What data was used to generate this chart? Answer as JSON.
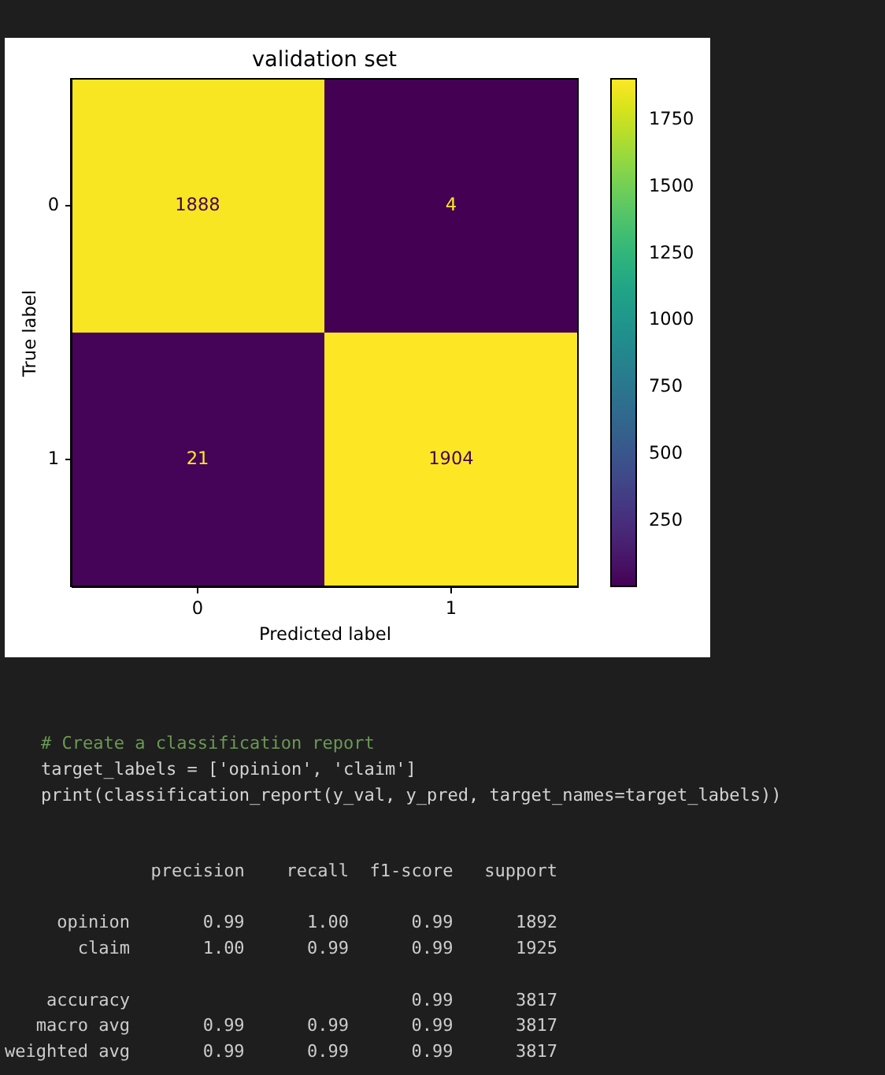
{
  "chart_data": [
    {
      "type": "heatmap",
      "title": "validation set",
      "xlabel": "Predicted label",
      "ylabel": "True label",
      "categories": [
        "0",
        "1"
      ],
      "y_categories": [
        "0",
        "1"
      ],
      "cells": [
        [
          1888,
          4
        ],
        [
          21,
          1904
        ]
      ],
      "data_labels": true,
      "clim": [
        4,
        1904
      ],
      "cticks": [
        250,
        500,
        750,
        1000,
        1250,
        1500,
        1750
      ]
    },
    {
      "type": "other",
      "annotations": [
        "# Create a classification report",
        "target_labels = ['opinion', 'claim']",
        "print(classification_report(y_val, y_pred, target_names=target_labels))"
      ]
    },
    {
      "type": "other",
      "annotations": [
        "              precision    recall  f1-score   support",
        "     opinion       0.99      1.00      0.99      1892",
        "       claim       1.00      0.99      0.99      1925",
        "    accuracy                           0.99      3817",
        "   macro avg       0.99      0.99      0.99      3817",
        "weighted avg       0.99      0.99      0.99      3817"
      ]
    }
  ]
}
